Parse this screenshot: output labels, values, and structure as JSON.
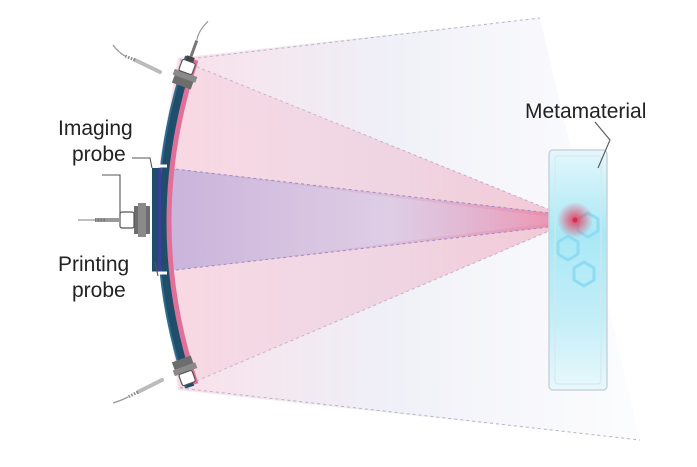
{
  "labels": {
    "imaging_probe_line1": "Imaging",
    "imaging_probe_line2": "probe",
    "printing_probe_line1": "Printing",
    "printing_probe_line2": "probe",
    "metamaterial": "Metamaterial"
  },
  "colors": {
    "array_dark": "#1f4e6b",
    "array_pink": "#e0709a",
    "beam_pink": "#e98aa6",
    "beam_lavender": "#b7a2d6",
    "metamaterial_cyan": "#7fdcf0",
    "focus_red": "#e63a5c",
    "probe_gray": "#6d6d6d"
  },
  "icons": [
    "ultrasound-probe-icon",
    "hexagon-lattice-icon"
  ]
}
